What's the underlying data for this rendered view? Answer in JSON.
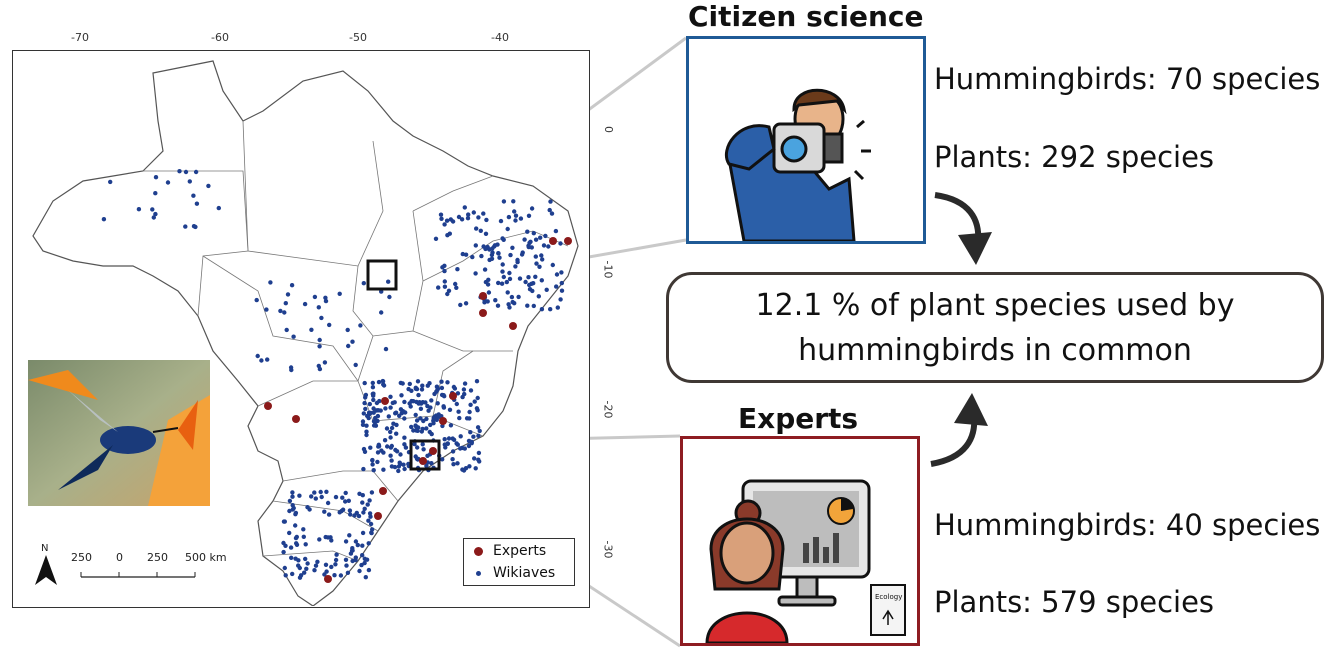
{
  "map": {
    "x_ticks": [
      "-70",
      "-60",
      "-50",
      "-40"
    ],
    "y_ticks": [
      "0",
      "-10",
      "-20",
      "-30"
    ],
    "scale_labels": [
      "250",
      "0",
      "250",
      "500 km"
    ],
    "north_label": "N",
    "legend": [
      {
        "label": "Experts",
        "color": "#8b1a1a"
      },
      {
        "label": "Wikiaves",
        "color": "#1f3f8f"
      }
    ]
  },
  "citizen": {
    "heading": "Citizen science",
    "hummingbirds": "Hummingbirds: 70 species",
    "plants": "Plants: 292 species",
    "border_color": "#1f5a96"
  },
  "experts": {
    "heading": "Experts",
    "hummingbirds": "Hummingbirds: 40 species",
    "plants": "Plants: 579 species",
    "border_color": "#8e1c22",
    "book_label": "Ecology"
  },
  "common": {
    "line1": "12.1 % of plant species used by",
    "line2": "hummingbirds in common"
  },
  "colors": {
    "wikiaves_point": "#1f3f8f",
    "expert_point": "#8b1a1a",
    "box_border": "#3f3834"
  }
}
